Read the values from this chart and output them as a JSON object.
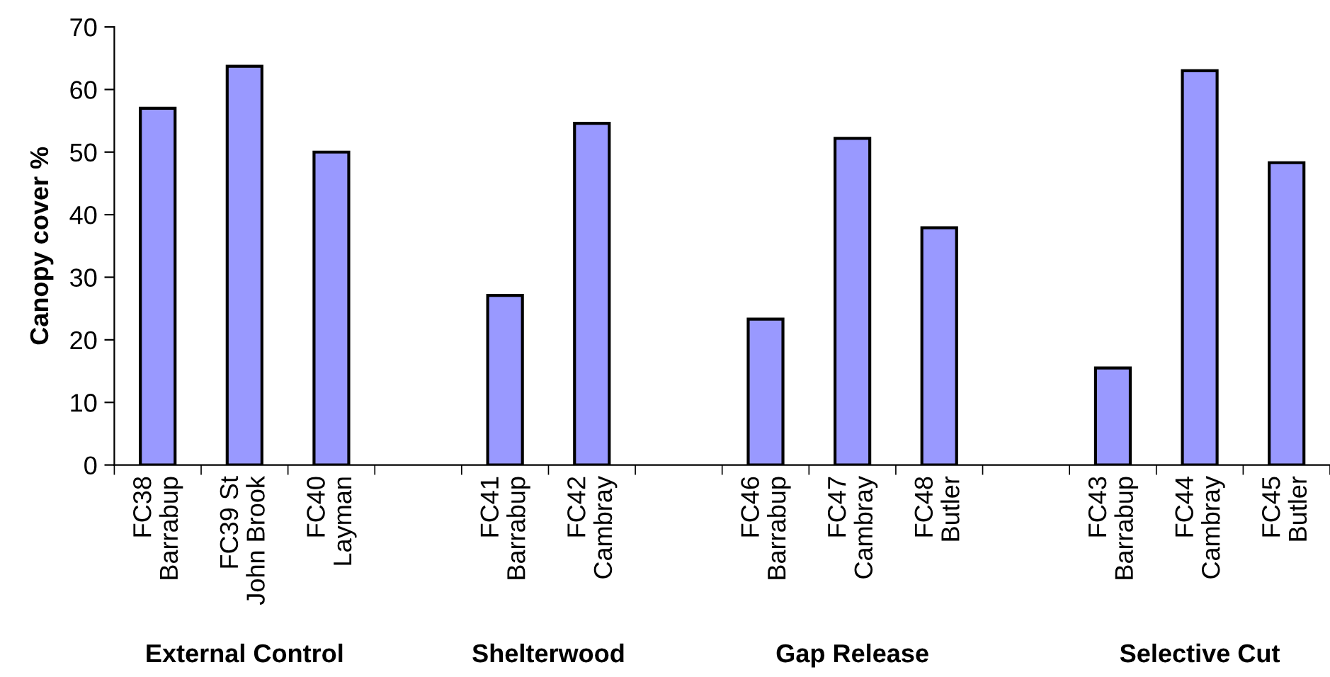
{
  "chart_data": {
    "type": "bar",
    "ylabel": "Canopy cover %",
    "categories": [
      "FC38\nBarrabup",
      "FC39 St\nJohn Brook",
      "FC40\nLayman",
      null,
      "FC41\nBarrabup",
      "FC42\nCambray",
      null,
      "FC46\nBarrabup",
      "FC47\nCambray",
      "FC48\nButler",
      null,
      "FC43\nBarrabup",
      "FC44\nCambray",
      "FC45\nButler"
    ],
    "values": [
      57,
      63.7,
      50,
      null,
      27.1,
      54.6,
      null,
      23.3,
      52.2,
      37.9,
      null,
      15.5,
      63.0,
      48.3
    ],
    "color": "#9999ff",
    "ylim": [
      0,
      70
    ],
    "yticks": [
      0,
      10,
      20,
      30,
      40,
      50,
      60,
      70
    ],
    "annotations": [
      "External Control",
      "Shelterwood",
      "Gap Release",
      "Selective Cut"
    ]
  }
}
